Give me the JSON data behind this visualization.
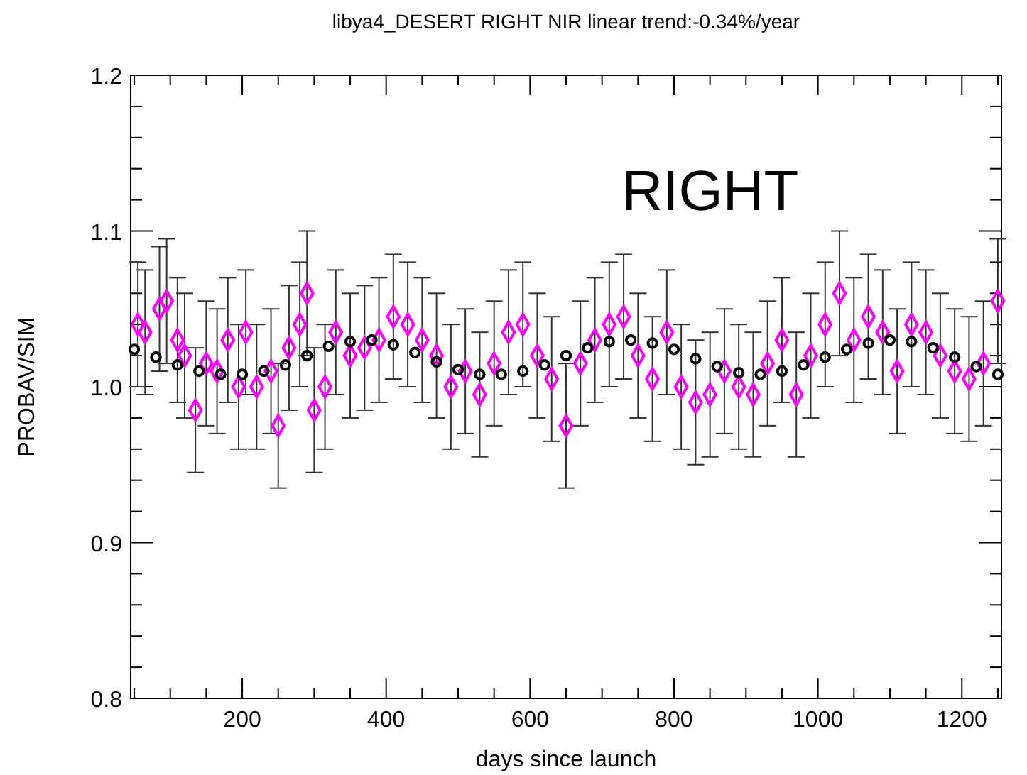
{
  "chart_data": {
    "type": "scatter",
    "title": "libya4_DESERT RIGHT NIR linear trend:-0.34%/year",
    "xlabel": "days since launch",
    "ylabel": "PROBAV/SIM",
    "annotations": [
      "RIGHT"
    ],
    "xlim": [
      45,
      1255
    ],
    "ylim": [
      0.8,
      1.2
    ],
    "xticks": [
      {
        "value": 50,
        "label": null
      },
      {
        "value": 100,
        "label": null
      },
      {
        "value": 150,
        "label": null
      },
      200,
      {
        "value": 250,
        "label": null
      },
      {
        "value": 300,
        "label": null
      },
      {
        "value": 350,
        "label": null
      },
      400,
      {
        "value": 450,
        "label": null
      },
      {
        "value": 500,
        "label": null
      },
      {
        "value": 550,
        "label": null
      },
      600,
      {
        "value": 650,
        "label": null
      },
      {
        "value": 700,
        "label": null
      },
      {
        "value": 750,
        "label": null
      },
      800,
      {
        "value": 850,
        "label": null
      },
      {
        "value": 900,
        "label": null
      },
      {
        "value": 950,
        "label": null
      },
      1000,
      {
        "value": 1050,
        "label": null
      },
      {
        "value": 1100,
        "label": null
      },
      {
        "value": 1150,
        "label": null
      },
      1200,
      {
        "value": 1250,
        "label": null
      }
    ],
    "yticks": [
      {
        "value": 0.8,
        "label": "0.8"
      },
      {
        "value": 0.82,
        "label": null
      },
      {
        "value": 0.84,
        "label": null
      },
      {
        "value": 0.86,
        "label": null
      },
      {
        "value": 0.88,
        "label": null
      },
      {
        "value": 0.9,
        "label": "0.9"
      },
      {
        "value": 0.92,
        "label": null
      },
      {
        "value": 0.94,
        "label": null
      },
      {
        "value": 0.96,
        "label": null
      },
      {
        "value": 0.98,
        "label": null
      },
      {
        "value": 1.0,
        "label": "1.0"
      },
      {
        "value": 1.02,
        "label": null
      },
      {
        "value": 1.04,
        "label": null
      },
      {
        "value": 1.06,
        "label": null
      },
      {
        "value": 1.08,
        "label": null
      },
      {
        "value": 1.1,
        "label": "1.1"
      },
      {
        "value": 1.12,
        "label": null
      },
      {
        "value": 1.14,
        "label": null
      },
      {
        "value": 1.16,
        "label": null
      },
      {
        "value": 1.18,
        "label": null
      },
      {
        "value": 1.2,
        "label": "1.2"
      }
    ],
    "grid": false,
    "series": [
      {
        "color": "#ff00ff",
        "marker": "diamond",
        "x": [
          55,
          65,
          85,
          95,
          110,
          120,
          135,
          150,
          165,
          180,
          195,
          205,
          220,
          240,
          250,
          265,
          280,
          290,
          300,
          315,
          330,
          350,
          370,
          390,
          410,
          430,
          450,
          470,
          490,
          510,
          530,
          550,
          570,
          590,
          610,
          630,
          650,
          670,
          690,
          710,
          730,
          750,
          770,
          790,
          810,
          830,
          850,
          870,
          890,
          910,
          930,
          950,
          970,
          990,
          1010,
          1030,
          1050,
          1070,
          1090,
          1110,
          1130,
          1150,
          1170,
          1190,
          1210,
          1230,
          1250
        ],
        "values": [
          1.04,
          1.035,
          1.05,
          1.055,
          1.03,
          1.02,
          0.985,
          1.015,
          1.01,
          1.03,
          1.0,
          1.035,
          1.0,
          1.01,
          0.975,
          1.025,
          1.04,
          1.06,
          0.985,
          1.0,
          1.035,
          1.02,
          1.025,
          1.03,
          1.045,
          1.04,
          1.03,
          1.02,
          1.0,
          1.01,
          0.995,
          1.015,
          1.035,
          1.04,
          1.02,
          1.005,
          0.975,
          1.015,
          1.03,
          1.04,
          1.045,
          1.02,
          1.005,
          1.035,
          1.0,
          0.99,
          0.995,
          1.01,
          1.0,
          0.995,
          1.015,
          1.03,
          0.995,
          1.02,
          1.04,
          1.06,
          1.03,
          1.045,
          1.035,
          1.01,
          1.04,
          1.035,
          1.02,
          1.01,
          1.005,
          1.015,
          1.055
        ],
        "errors": [
          0.04,
          0.04,
          0.04,
          0.04,
          0.04,
          0.04,
          0.04,
          0.04,
          0.04,
          0.04,
          0.04,
          0.04,
          0.04,
          0.04,
          0.04,
          0.04,
          0.04,
          0.04,
          0.04,
          0.04,
          0.04,
          0.04,
          0.04,
          0.04,
          0.04,
          0.04,
          0.04,
          0.04,
          0.04,
          0.04,
          0.04,
          0.04,
          0.04,
          0.04,
          0.04,
          0.04,
          0.04,
          0.04,
          0.04,
          0.04,
          0.04,
          0.04,
          0.04,
          0.04,
          0.04,
          0.04,
          0.04,
          0.04,
          0.04,
          0.04,
          0.04,
          0.04,
          0.04,
          0.04,
          0.04,
          0.04,
          0.04,
          0.04,
          0.04,
          0.04,
          0.04,
          0.04,
          0.04,
          0.04,
          0.04,
          0.04,
          0.04
        ]
      },
      {
        "color": "#000000",
        "marker": "circle",
        "x": [
          50,
          80,
          110,
          140,
          170,
          200,
          230,
          260,
          290,
          320,
          350,
          380,
          410,
          440,
          470,
          500,
          530,
          560,
          590,
          620,
          650,
          680,
          710,
          740,
          770,
          800,
          830,
          860,
          890,
          920,
          950,
          980,
          1010,
          1040,
          1070,
          1100,
          1130,
          1160,
          1190,
          1220,
          1250
        ],
        "values": [
          1.024,
          1.019,
          1.014,
          1.01,
          1.008,
          1.008,
          1.01,
          1.014,
          1.02,
          1.026,
          1.029,
          1.03,
          1.027,
          1.022,
          1.016,
          1.011,
          1.008,
          1.008,
          1.01,
          1.014,
          1.02,
          1.025,
          1.029,
          1.03,
          1.028,
          1.024,
          1.018,
          1.013,
          1.009,
          1.008,
          1.01,
          1.014,
          1.019,
          1.024,
          1.028,
          1.03,
          1.029,
          1.025,
          1.019,
          1.013,
          1.008
        ]
      }
    ]
  }
}
